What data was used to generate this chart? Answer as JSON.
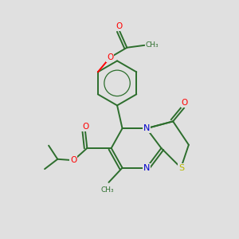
{
  "background_color": "#e0e0e0",
  "bond_color": "#2d6e2d",
  "atom_colors": {
    "O": "#ff0000",
    "N": "#0000cc",
    "S": "#b8b800",
    "C": "#2d6e2d"
  },
  "figsize": [
    3.0,
    3.0
  ],
  "dpi": 100
}
